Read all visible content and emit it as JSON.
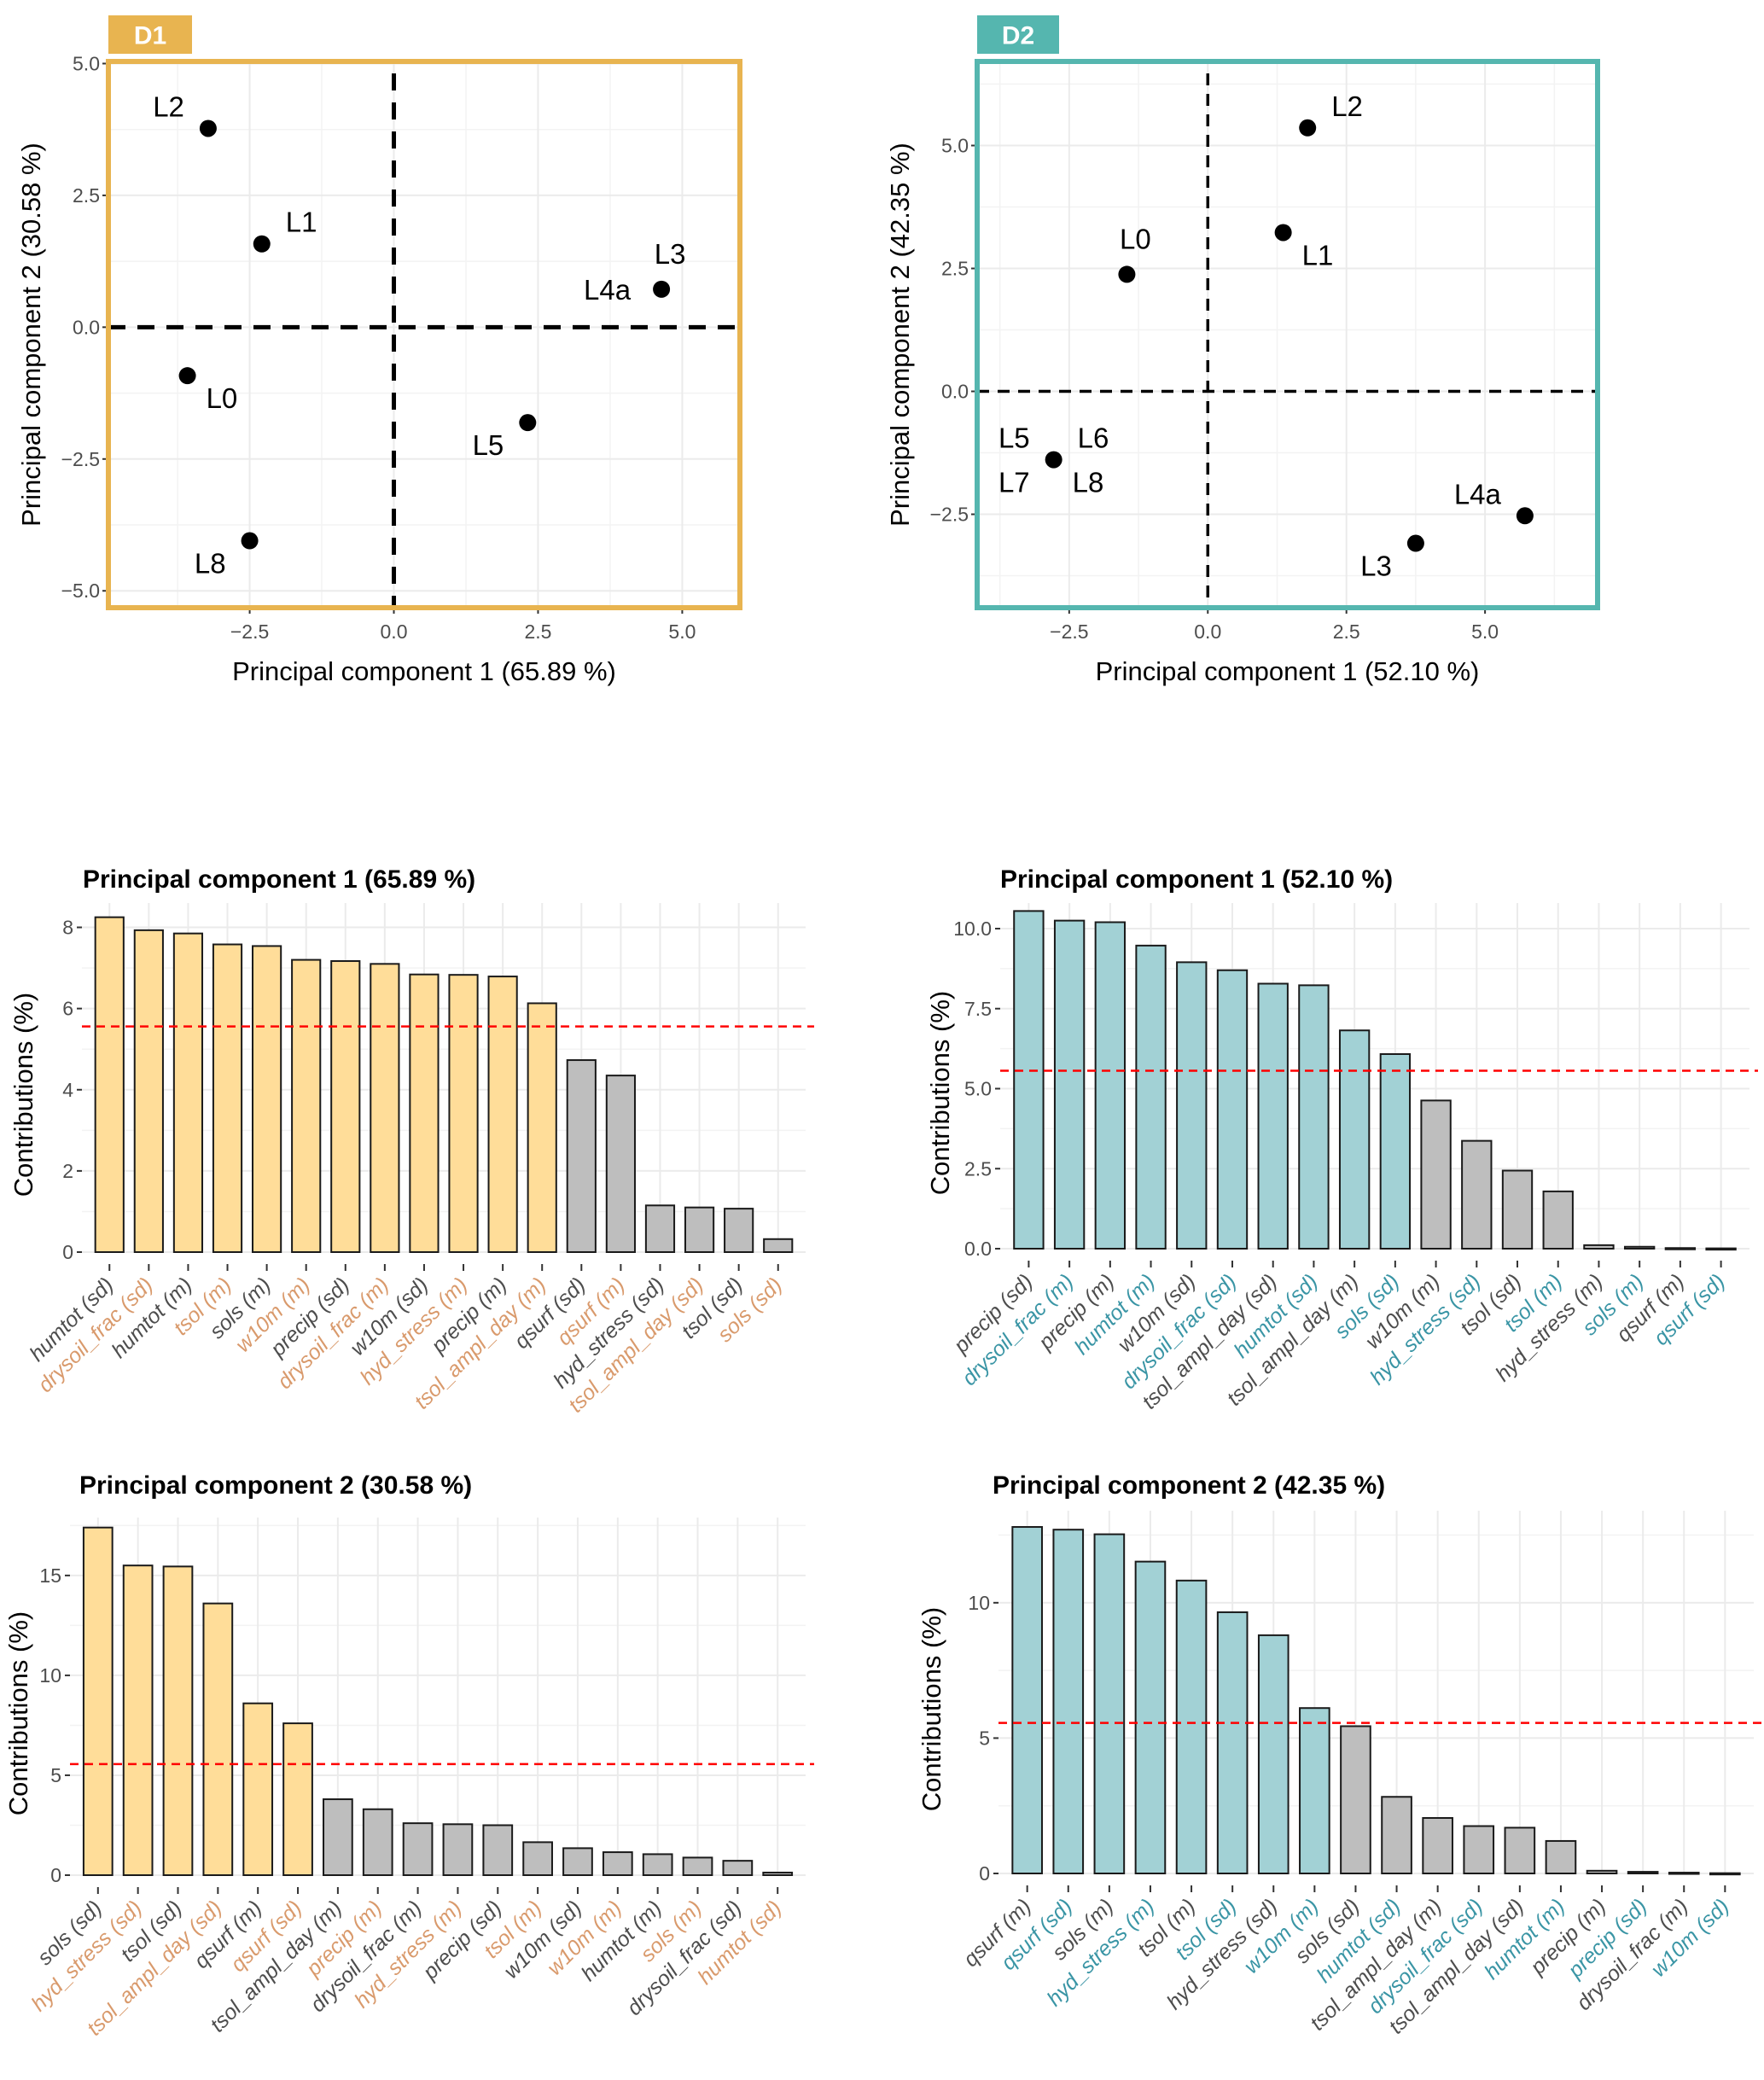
{
  "colors": {
    "d1_accent": "#E8B450",
    "d2_accent": "#55B6AF",
    "d1_bar_highlight": "#FFDD99",
    "d2_bar_highlight": "#A2D1D5",
    "bar_default": "#BEBEBE",
    "d1_label_highlight": "#D99A6C",
    "d2_label_highlight": "#3A95A5",
    "label_default": "#4D4D4D",
    "threshold_line": "#FF0000"
  },
  "chart_data": [
    {
      "id": "d1_scatter",
      "type": "scatter",
      "badge": "D1",
      "title": "",
      "xlabel": "Principal component 1 (65.89 %)",
      "ylabel": "Principal component 2 (30.58 %)",
      "xlim": [
        -4.95,
        6.0
      ],
      "ylim": [
        -5.32,
        5.04
      ],
      "xticks": [
        -2.5,
        0.0,
        2.5,
        5.0
      ],
      "xtick_labels": [
        "−2.5",
        "0.0",
        "2.5",
        "5.0"
      ],
      "yticks": [
        -5.0,
        -2.5,
        0.0,
        2.5,
        5.0
      ],
      "ytick_labels": [
        "−5.0",
        "−2.5",
        "0.0",
        "2.5",
        "5.0"
      ],
      "grid": true,
      "reference_lines": {
        "x": 0,
        "y": 0,
        "style": "dashed"
      },
      "points": [
        {
          "x": -3.22,
          "y": 3.77,
          "labels": [
            {
              "text": "L2",
              "pos": "upper-left"
            }
          ]
        },
        {
          "x": -2.29,
          "y": 1.58,
          "labels": [
            {
              "text": "L1",
              "pos": "upper-right"
            }
          ]
        },
        {
          "x": 4.64,
          "y": 0.72,
          "labels": [
            {
              "text": "L3",
              "pos": "above"
            },
            {
              "text": "L4a",
              "pos": "left"
            }
          ]
        },
        {
          "x": -3.58,
          "y": -0.92,
          "labels": [
            {
              "text": "L0",
              "pos": "lower-right"
            }
          ]
        },
        {
          "x": 2.32,
          "y": -1.81,
          "labels": [
            {
              "text": "L5",
              "pos": "lower-left"
            }
          ]
        },
        {
          "x": -2.5,
          "y": -4.05,
          "labels": [
            {
              "text": "L8",
              "pos": "lower-left"
            }
          ]
        }
      ]
    },
    {
      "id": "d2_scatter",
      "type": "scatter",
      "badge": "D2",
      "title": "",
      "xlabel": "Principal component 1 (52.10 %)",
      "ylabel": "Principal component 2 (42.35 %)",
      "xlim": [
        -4.16,
        7.03
      ],
      "ylim": [
        -4.4,
        6.71
      ],
      "xticks": [
        -2.5,
        0.0,
        2.5,
        5.0
      ],
      "xtick_labels": [
        "−2.5",
        "0.0",
        "2.5",
        "5.0"
      ],
      "yticks": [
        -2.5,
        0.0,
        2.5,
        5.0
      ],
      "ytick_labels": [
        "−2.5",
        "0.0",
        "2.5",
        "5.0"
      ],
      "grid": true,
      "reference_lines": {
        "x": 0,
        "y": 0,
        "style": "dashed"
      },
      "points": [
        {
          "x": 1.8,
          "y": 5.36,
          "labels": [
            {
              "text": "L2",
              "pos": "upper-right"
            }
          ]
        },
        {
          "x": 1.36,
          "y": 3.23,
          "labels": [
            {
              "text": "L1",
              "pos": "lower-right"
            }
          ]
        },
        {
          "x": -1.46,
          "y": 2.38,
          "labels": [
            {
              "text": "L0",
              "pos": "above"
            }
          ]
        },
        {
          "x": -2.78,
          "y": -1.39,
          "labels": [
            {
              "text": "L5",
              "pos": "upper-left"
            },
            {
              "text": "L6",
              "pos": "upper-right"
            },
            {
              "text": "L7",
              "pos": "lower-left"
            },
            {
              "text": "L8",
              "pos": "lower-right"
            }
          ]
        },
        {
          "x": 5.72,
          "y": -2.53,
          "labels": [
            {
              "text": "L4a",
              "pos": "upper-left"
            }
          ]
        },
        {
          "x": 3.75,
          "y": -3.09,
          "labels": [
            {
              "text": "L3",
              "pos": "lower-left"
            }
          ]
        }
      ]
    },
    {
      "id": "d1_pc1_bar",
      "type": "bar",
      "title": "Principal component 1 (65.89 %)",
      "xlabel": "",
      "ylabel": "Contributions (%)",
      "ylim": [
        0,
        8.6
      ],
      "yticks": [
        0,
        2,
        4,
        6,
        8
      ],
      "ytick_labels": [
        "0",
        "2",
        "4",
        "6",
        "8"
      ],
      "threshold": 5.56,
      "grid": true,
      "palette": "d1",
      "categories": [
        "humtot (sd)",
        "drysoil_frac (sd)",
        "humtot (m)",
        "tsol (m)",
        "sols (m)",
        "w10m (m)",
        "precip (sd)",
        "drysoil_frac (m)",
        "w10m (sd)",
        "hyd_stress (m)",
        "precip (m)",
        "tsol_ampl_day (m)",
        "qsurf (sd)",
        "qsurf (m)",
        "hyd_stress (sd)",
        "tsol_ampl_day (sd)",
        "tsol (sd)",
        "sols (sd)"
      ],
      "label_highlight": [
        false,
        true,
        false,
        true,
        false,
        true,
        false,
        true,
        false,
        true,
        false,
        true,
        false,
        true,
        false,
        true,
        false,
        true
      ],
      "values": [
        8.25,
        7.93,
        7.85,
        7.58,
        7.54,
        7.2,
        7.17,
        7.1,
        6.84,
        6.83,
        6.79,
        6.13,
        4.73,
        4.35,
        1.15,
        1.1,
        1.07,
        0.32
      ]
    },
    {
      "id": "d2_pc1_bar",
      "type": "bar",
      "title": "Principal component 1 (52.10 %)",
      "xlabel": "",
      "ylabel": "Contributions (%)",
      "ylim": [
        0,
        10.8
      ],
      "yticks": [
        0,
        2.5,
        5,
        7.5,
        10
      ],
      "ytick_labels": [
        "0.0",
        "2.5",
        "5.0",
        "7.5",
        "10.0"
      ],
      "threshold": 5.56,
      "grid": true,
      "palette": "d2",
      "categories": [
        "precip (sd)",
        "drysoil_frac (m)",
        "precip (m)",
        "humtot (m)",
        "w10m (sd)",
        "drysoil_frac (sd)",
        "tsol_ampl_day (sd)",
        "humtot (sd)",
        "tsol_ampl_day (m)",
        "sols (sd)",
        "w10m (m)",
        "hyd_stress (sd)",
        "tsol (sd)",
        "tsol (m)",
        "hyd_stress (m)",
        "sols (m)",
        "qsurf (m)",
        "qsurf (sd)"
      ],
      "label_highlight": [
        false,
        true,
        false,
        true,
        false,
        true,
        false,
        true,
        false,
        true,
        false,
        true,
        false,
        true,
        false,
        true,
        false,
        true
      ],
      "values": [
        10.55,
        10.25,
        10.2,
        9.47,
        8.95,
        8.7,
        8.28,
        8.23,
        6.82,
        6.08,
        4.63,
        3.37,
        2.44,
        1.79,
        0.11,
        0.06,
        0.02,
        0.01
      ]
    },
    {
      "id": "d1_pc2_bar",
      "type": "bar",
      "title": "Principal component 2 (30.58 %)",
      "xlabel": "",
      "ylabel": "Contributions (%)",
      "ylim": [
        0,
        17.9
      ],
      "yticks": [
        0,
        5,
        10,
        15
      ],
      "ytick_labels": [
        "0",
        "5",
        "10",
        "15"
      ],
      "threshold": 5.56,
      "grid": true,
      "palette": "d1",
      "categories": [
        "sols (sd)",
        "hyd_stress (sd)",
        "tsol (sd)",
        "tsol_ampl_day (sd)",
        "qsurf (m)",
        "qsurf (sd)",
        "tsol_ampl_day (m)",
        "precip (m)",
        "drysoil_frac (m)",
        "hyd_stress (m)",
        "precip (sd)",
        "tsol (m)",
        "w10m (sd)",
        "w10m (m)",
        "humtot (m)",
        "sols (m)",
        "drysoil_frac (sd)",
        "humtot (sd)"
      ],
      "label_highlight": [
        false,
        true,
        false,
        true,
        false,
        true,
        false,
        true,
        false,
        true,
        false,
        true,
        false,
        true,
        false,
        true,
        false,
        true
      ],
      "values": [
        17.4,
        15.5,
        15.45,
        13.6,
        8.6,
        7.6,
        3.8,
        3.3,
        2.6,
        2.55,
        2.5,
        1.65,
        1.35,
        1.15,
        1.05,
        0.88,
        0.72,
        0.13
      ]
    },
    {
      "id": "d2_pc2_bar",
      "type": "bar",
      "title": "Principal component 2 (42.35 %)",
      "xlabel": "",
      "ylabel": "Contributions (%)",
      "ylim": [
        0,
        13.4
      ],
      "yticks": [
        0,
        5,
        10
      ],
      "ytick_labels": [
        "0",
        "5",
        "10"
      ],
      "threshold": 5.56,
      "grid": true,
      "palette": "d2",
      "categories": [
        "qsurf (m)",
        "qsurf (sd)",
        "sols (m)",
        "hyd_stress (m)",
        "tsol (m)",
        "tsol (sd)",
        "hyd_stress (sd)",
        "w10m (m)",
        "sols (sd)",
        "humtot (sd)",
        "tsol_ampl_day (m)",
        "drysoil_frac (sd)",
        "tsol_ampl_day (sd)",
        "humtot (m)",
        "precip (m)",
        "precip (sd)",
        "drysoil_frac (m)",
        "w10m (sd)"
      ],
      "label_highlight": [
        false,
        true,
        false,
        true,
        false,
        true,
        false,
        true,
        false,
        true,
        false,
        true,
        false,
        true,
        false,
        true,
        false,
        true
      ],
      "values": [
        12.8,
        12.7,
        12.53,
        11.52,
        10.82,
        9.65,
        8.8,
        6.11,
        5.44,
        2.83,
        2.05,
        1.75,
        1.69,
        1.2,
        0.1,
        0.06,
        0.03,
        0.01
      ]
    }
  ]
}
